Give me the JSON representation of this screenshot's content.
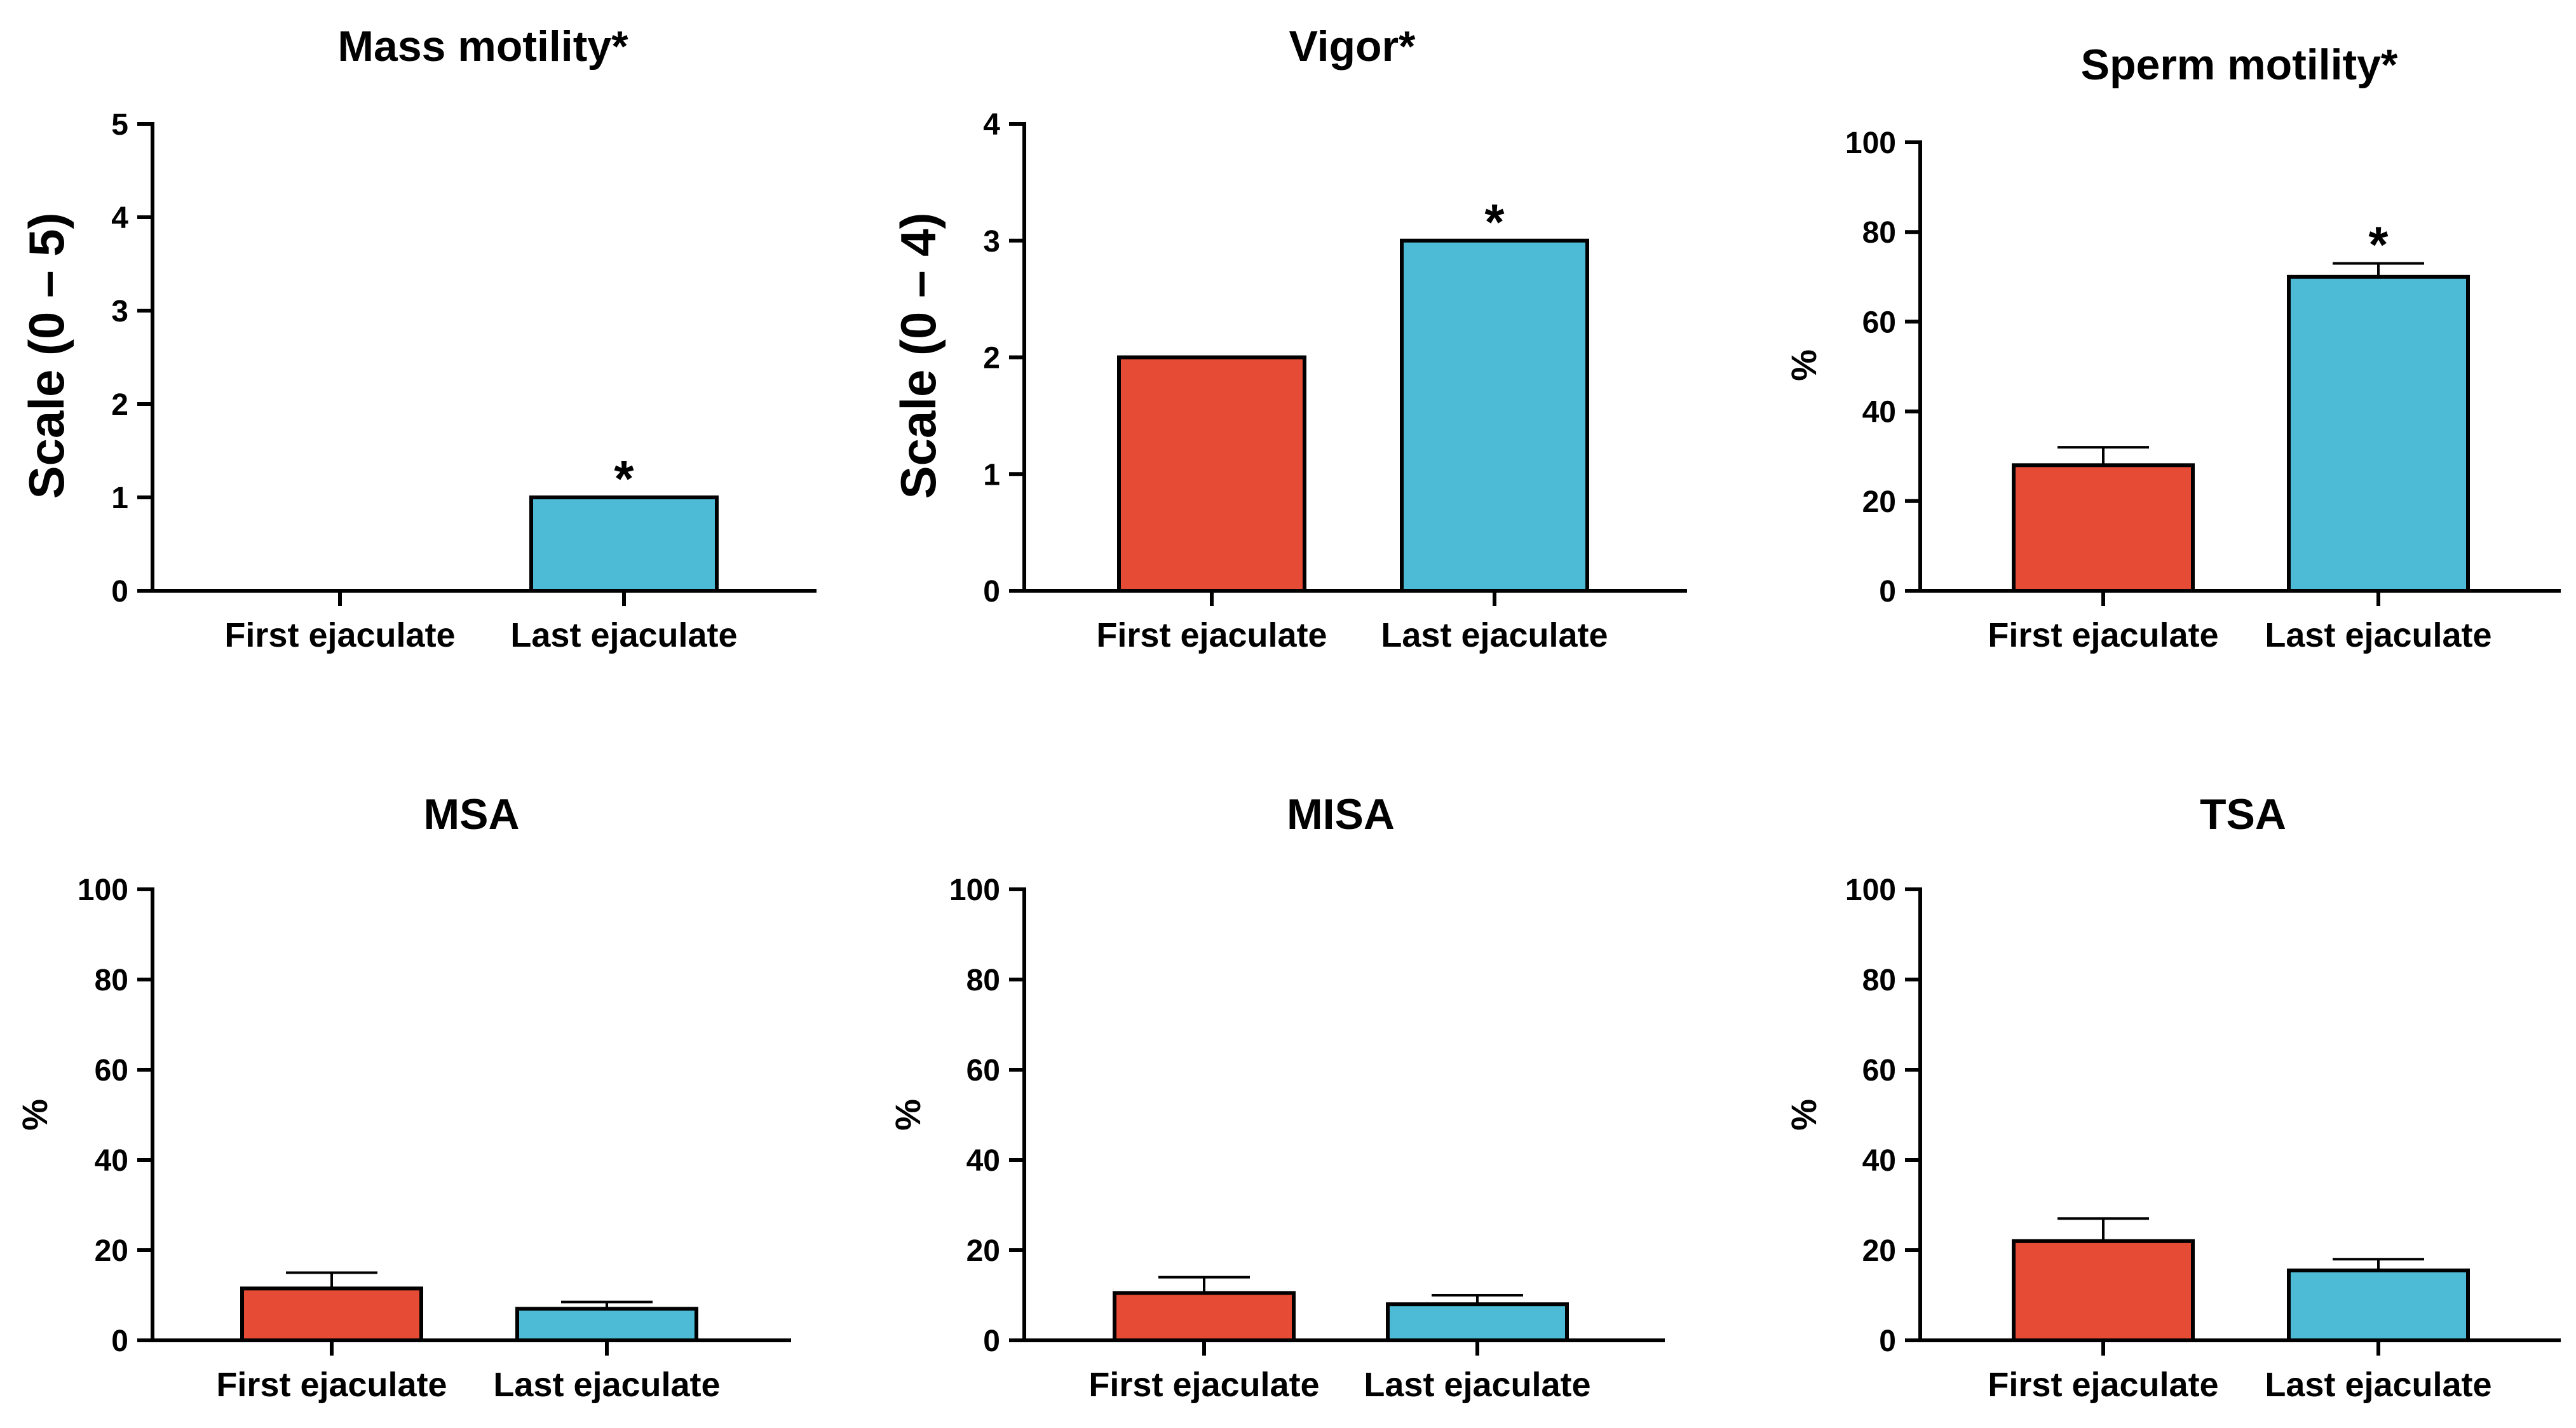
{
  "chart_data": [
    {
      "id": "mass",
      "type": "bar",
      "title": "Mass motility*",
      "ylabel": "Scale (0 – 5)",
      "ylim": [
        0,
        5
      ],
      "yticks": [
        0,
        1,
        2,
        3,
        4,
        5
      ],
      "categories": [
        "First ejaculate",
        "Last ejaculate"
      ],
      "values": [
        0,
        1
      ],
      "errors": [
        0,
        0
      ],
      "significance": [
        "",
        "*"
      ]
    },
    {
      "id": "vigor",
      "type": "bar",
      "title": "Vigor*",
      "ylabel": "Scale (0 – 4)",
      "ylim": [
        0,
        4
      ],
      "yticks": [
        0,
        1,
        2,
        3,
        4
      ],
      "categories": [
        "First ejaculate",
        "Last ejaculate"
      ],
      "values": [
        2,
        3
      ],
      "errors": [
        0,
        0
      ],
      "significance": [
        "",
        "*"
      ]
    },
    {
      "id": "sperm",
      "type": "bar",
      "title": "Sperm motility*",
      "ylabel": "%",
      "ylim": [
        0,
        100
      ],
      "yticks": [
        0,
        20,
        40,
        60,
        80,
        100
      ],
      "categories": [
        "First ejaculate",
        "Last ejaculate"
      ],
      "values": [
        28,
        70
      ],
      "errors": [
        4,
        3
      ],
      "significance": [
        "",
        "*"
      ]
    },
    {
      "id": "msa",
      "type": "bar",
      "title": "MSA",
      "ylabel": "%",
      "ylim": [
        0,
        100
      ],
      "yticks": [
        0,
        20,
        40,
        60,
        80,
        100
      ],
      "categories": [
        "First ejaculate",
        "Last ejaculate"
      ],
      "values": [
        11.5,
        7
      ],
      "errors": [
        3.5,
        1.5
      ],
      "significance": [
        "",
        ""
      ]
    },
    {
      "id": "misa",
      "type": "bar",
      "title": "MISA",
      "ylabel": "%",
      "ylim": [
        0,
        100
      ],
      "yticks": [
        0,
        20,
        40,
        60,
        80,
        100
      ],
      "categories": [
        "First ejaculate",
        "Last ejaculate"
      ],
      "values": [
        10.5,
        8
      ],
      "errors": [
        3.5,
        2
      ],
      "significance": [
        "",
        ""
      ]
    },
    {
      "id": "tsa",
      "type": "bar",
      "title": "TSA",
      "ylabel": "%",
      "ylim": [
        0,
        100
      ],
      "yticks": [
        0,
        20,
        40,
        60,
        80,
        100
      ],
      "categories": [
        "First ejaculate",
        "Last ejaculate"
      ],
      "values": [
        22,
        15.5
      ],
      "errors": [
        5,
        2.5
      ],
      "significance": [
        "",
        ""
      ]
    }
  ],
  "colors": {
    "first_ejaculate": "#E64B35",
    "last_ejaculate": "#4DBBD5",
    "axis": "#000000"
  }
}
